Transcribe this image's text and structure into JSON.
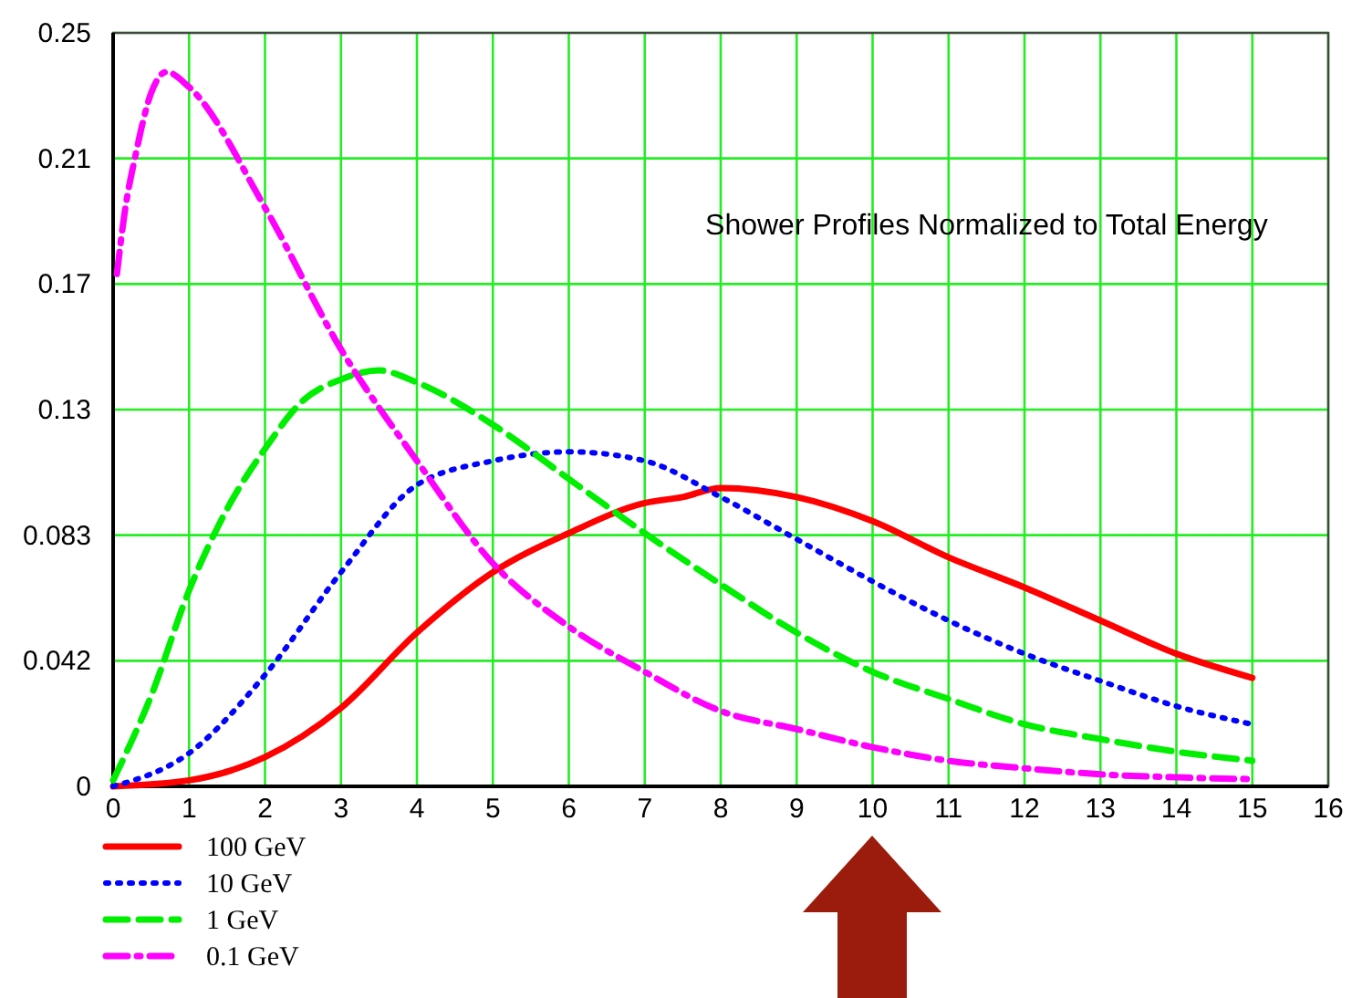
{
  "chart_data": {
    "type": "line",
    "title": "Shower Profiles Normalized to Total Energy",
    "xlim": [
      0,
      16
    ],
    "xticks": [
      0,
      1,
      2,
      3,
      4,
      5,
      6,
      7,
      8,
      9,
      10,
      11,
      12,
      13,
      14,
      15,
      16
    ],
    "ylim": [
      0,
      0.25
    ],
    "yticks": [
      0,
      {
        "value": 0.041667,
        "label": "0.042"
      },
      {
        "value": 0.083333,
        "label": "0.083"
      },
      {
        "value": 0.125,
        "label": "0.13"
      },
      {
        "value": 0.166667,
        "label": "0.17"
      },
      {
        "value": 0.208333,
        "label": "0.21"
      },
      0.25
    ],
    "grid": true,
    "legend": "bottom left",
    "series": [
      {
        "name": "100 GeV",
        "color": "#ff0000",
        "line_style": "solid",
        "x": [
          0,
          1,
          2,
          3,
          4,
          5,
          6,
          7,
          7.5,
          8,
          9,
          10,
          11,
          12,
          13,
          14,
          15
        ],
        "values": [
          0,
          0.002,
          0.0097,
          0.026,
          0.051,
          0.071,
          0.084,
          0.094,
          0.096,
          0.099,
          0.096,
          0.088,
          0.076,
          0.066,
          0.055,
          0.044,
          0.036
        ]
      },
      {
        "name": "10 GeV",
        "color": "#0000ff",
        "line_style": "dotted",
        "x": [
          0,
          1,
          2,
          3,
          4,
          5,
          6,
          7,
          8,
          9,
          10,
          11,
          12,
          13,
          14,
          15
        ],
        "values": [
          0,
          0.011,
          0.037,
          0.071,
          0.1,
          0.108,
          0.111,
          0.108,
          0.096,
          0.082,
          0.068,
          0.055,
          0.044,
          0.035,
          0.0266,
          0.0206
        ]
      },
      {
        "name": "1 GeV",
        "color": "#00ee00",
        "line_style": "dashed",
        "x": [
          0,
          0.5,
          1,
          1.5,
          2,
          2.5,
          3,
          3.5,
          4,
          5,
          6,
          7,
          8,
          9,
          10,
          11,
          12,
          13,
          14,
          15
        ],
        "values": [
          0.002,
          0.03,
          0.065,
          0.092,
          0.112,
          0.128,
          0.135,
          0.138,
          0.134,
          0.12,
          0.102,
          0.084,
          0.067,
          0.051,
          0.038,
          0.029,
          0.0206,
          0.0157,
          0.0115,
          0.0085
        ]
      },
      {
        "name": "0.1 GeV",
        "color": "#ff00ff",
        "line_style": "dashdot",
        "x": [
          0.05,
          0.15,
          0.3,
          0.5,
          0.7,
          1,
          2,
          3,
          4,
          5,
          6,
          7,
          8,
          9,
          10,
          11,
          12,
          13,
          14,
          15
        ],
        "values": [
          0.17,
          0.19,
          0.21,
          0.23,
          0.237,
          0.232,
          0.192,
          0.145,
          0.108,
          0.074,
          0.053,
          0.038,
          0.025,
          0.019,
          0.013,
          0.0085,
          0.006,
          0.004,
          0.003,
          0.0024
        ]
      }
    ]
  }
}
